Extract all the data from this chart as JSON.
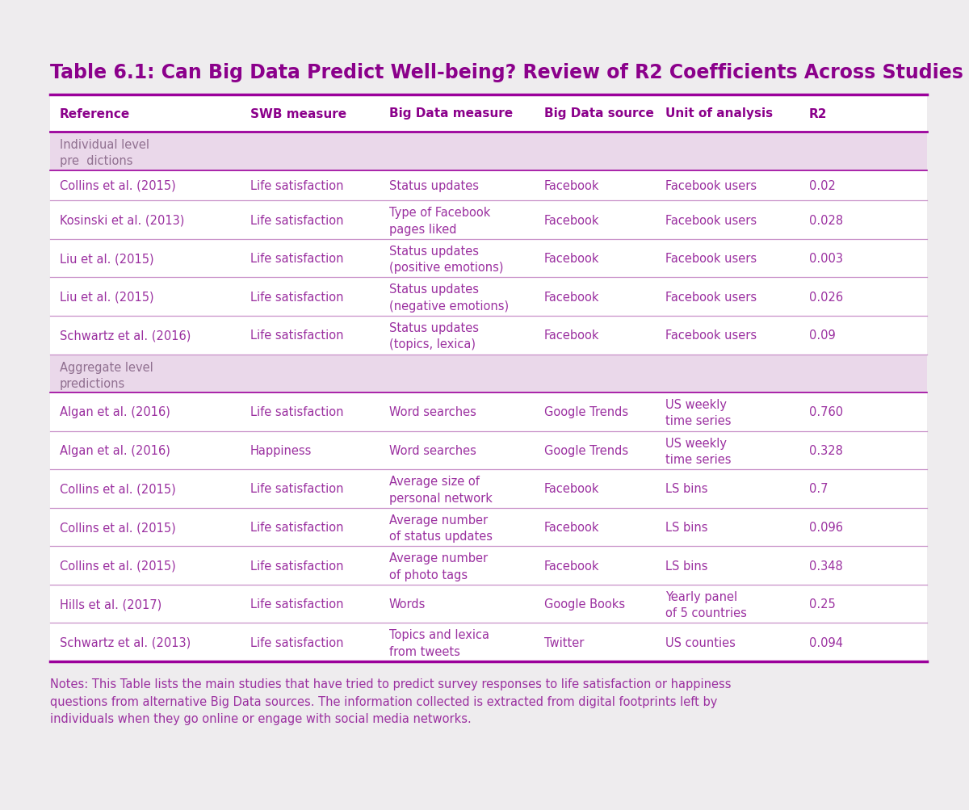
{
  "title": "Table 6.1: Can Big Data Predict Well-being? Review of R2 Coefficients Across Studies",
  "title_color": "#8B008B",
  "bg_color": "#EEECEE",
  "table_bg": "#FFFFFF",
  "header_color": "#8B008B",
  "section_bg": "#EAD8EA",
  "row_border_color": "#C890C8",
  "strong_border_color": "#9B009B",
  "text_color": "#9B30A0",
  "section_text_color": "#907090",
  "notes_color": "#9B30A0",
  "columns": [
    "Reference",
    "SWB measure",
    "Big Data measure",
    "Big Data source",
    "Unit of analysis",
    "R2"
  ],
  "rows": [
    {
      "type": "section",
      "text": "Individual level\npre  dictions"
    },
    {
      "type": "data",
      "ref": "Collins et al. (2015)",
      "swb": "Life satisfaction",
      "measure": "Status updates",
      "source": "Facebook",
      "unit": "Facebook users",
      "r2": "0.02"
    },
    {
      "type": "data",
      "ref": "Kosinski et al. (2013)",
      "swb": "Life satisfaction",
      "measure": "Type of Facebook\npages liked",
      "source": "Facebook",
      "unit": "Facebook users",
      "r2": "0.028"
    },
    {
      "type": "data",
      "ref": "Liu et al. (2015)",
      "swb": "Life satisfaction",
      "measure": "Status updates\n(positive emotions)",
      "source": "Facebook",
      "unit": "Facebook users",
      "r2": "0.003"
    },
    {
      "type": "data",
      "ref": "Liu et al. (2015)",
      "swb": "Life satisfaction",
      "measure": "Status updates\n(negative emotions)",
      "source": "Facebook",
      "unit": "Facebook users",
      "r2": "0.026"
    },
    {
      "type": "data",
      "ref": "Schwartz et al. (2016)",
      "swb": "Life satisfaction",
      "measure": "Status updates\n(topics, lexica)",
      "source": "Facebook",
      "unit": "Facebook users",
      "r2": "0.09"
    },
    {
      "type": "section",
      "text": "Aggregate level\npredictions"
    },
    {
      "type": "data",
      "ref": "Algan et al. (2016)",
      "swb": "Life satisfaction",
      "measure": "Word searches",
      "source": "Google Trends",
      "unit": "US weekly\ntime series",
      "r2": "0.760"
    },
    {
      "type": "data",
      "ref": "Algan et al. (2016)",
      "swb": "Happiness",
      "measure": "Word searches",
      "source": "Google Trends",
      "unit": "US weekly\ntime series",
      "r2": "0.328"
    },
    {
      "type": "data",
      "ref": "Collins et al. (2015)",
      "swb": "Life satisfaction",
      "measure": "Average size of\npersonal network",
      "source": "Facebook",
      "unit": "LS bins",
      "r2": "0.7"
    },
    {
      "type": "data",
      "ref": "Collins et al. (2015)",
      "swb": "Life satisfaction",
      "measure": "Average number\nof status updates",
      "source": "Facebook",
      "unit": "LS bins",
      "r2": "0.096"
    },
    {
      "type": "data",
      "ref": "Collins et al. (2015)",
      "swb": "Life satisfaction",
      "measure": "Average number\nof photo tags",
      "source": "Facebook",
      "unit": "LS bins",
      "r2": "0.348"
    },
    {
      "type": "data",
      "ref": "Hills et al. (2017)",
      "swb": "Life satisfaction",
      "measure": "Words",
      "source": "Google Books",
      "unit": "Yearly panel\nof 5 countries",
      "r2": "0.25"
    },
    {
      "type": "data",
      "ref": "Schwartz et al. (2013)",
      "swb": "Life satisfaction",
      "measure": "Topics and lexica\nfrom tweets",
      "source": "Twitter",
      "unit": "US counties",
      "r2": "0.094"
    }
  ],
  "notes": "Notes: This Table lists the main studies that have tried to predict survey responses to life satisfaction or happiness\nquestions from alternative Big Data sources. The information collected is extracted from digital footprints left by\nindividuals when they go online or engage with social media networks."
}
